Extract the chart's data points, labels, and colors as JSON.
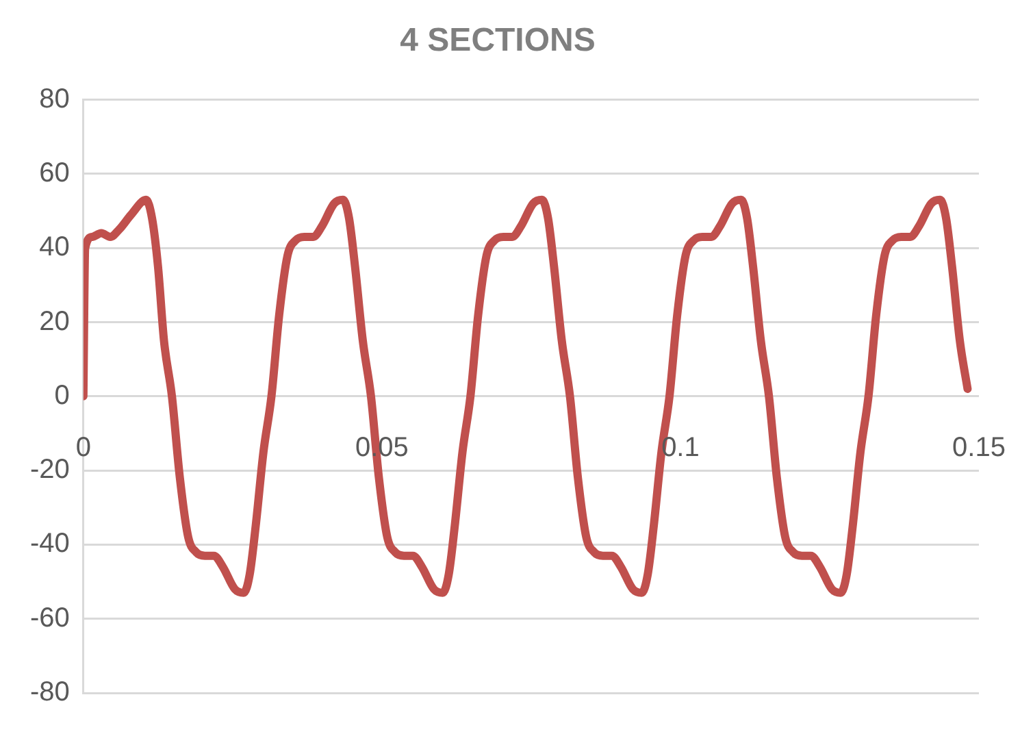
{
  "chart_data": {
    "type": "line",
    "title": "4 SECTIONS",
    "x": [
      0,
      0.0003,
      0.0015,
      0.003,
      0.0045,
      0.006,
      0.008,
      0.0105,
      0.0115,
      0.0125,
      0.0135,
      0.01483,
      0.01616,
      0.01756,
      0.01886,
      0.02036,
      0.02186,
      0.02336,
      0.02536,
      0.02686,
      0.02786,
      0.02886,
      0.03016,
      0.0315,
      0.0328,
      0.0342,
      0.0355,
      0.037,
      0.0385,
      0.04,
      0.042,
      0.0435,
      0.0445,
      0.0455,
      0.0468,
      0.04817,
      0.0495,
      0.0509,
      0.0522,
      0.0537,
      0.0552,
      0.0567,
      0.0587,
      0.0602,
      0.0612,
      0.0622,
      0.0635,
      0.06483,
      0.06613,
      0.06753,
      0.06883,
      0.07033,
      0.07183,
      0.07333,
      0.07533,
      0.07683,
      0.07783,
      0.07883,
      0.08013,
      0.0815,
      0.08283,
      0.08423,
      0.08553,
      0.08703,
      0.08853,
      0.09003,
      0.09203,
      0.09353,
      0.09453,
      0.09553,
      0.09683,
      0.09817,
      0.09947,
      0.10087,
      0.10217,
      0.10367,
      0.10517,
      0.10667,
      0.10867,
      0.11017,
      0.11117,
      0.11217,
      0.11347,
      0.11483,
      0.11616,
      0.11756,
      0.11886,
      0.12036,
      0.12186,
      0.12336,
      0.12536,
      0.12686,
      0.12786,
      0.12886,
      0.13016,
      0.1315,
      0.1328,
      0.1342,
      0.1355,
      0.137,
      0.1385,
      0.14,
      0.142,
      0.1435,
      0.1445,
      0.1455,
      0.1468,
      0.1481
    ],
    "series": [
      {
        "color": "#c0504d",
        "values": [
          0,
          40,
          43,
          44,
          43,
          45,
          49,
          53,
          48,
          35,
          15,
          0,
          -22,
          -38,
          -42,
          -43,
          -43,
          -46,
          -52,
          -53,
          -48,
          -35,
          -15,
          0,
          22,
          38,
          42,
          43,
          43,
          46,
          52,
          53,
          48,
          35,
          15,
          0,
          -22,
          -38,
          -42,
          -43,
          -43,
          -46,
          -52,
          -53,
          -48,
          -35,
          -15,
          0,
          22,
          38,
          42,
          43,
          43,
          46,
          52,
          53,
          48,
          35,
          15,
          0,
          -22,
          -38,
          -42,
          -43,
          -43,
          -46,
          -52,
          -53,
          -48,
          -35,
          -15,
          0,
          22,
          38,
          42,
          43,
          43,
          46,
          52,
          53,
          48,
          35,
          15,
          0,
          -22,
          -38,
          -42,
          -43,
          -43,
          -46,
          -52,
          -53,
          -48,
          -35,
          -15,
          0,
          22,
          38,
          42,
          43,
          43,
          46,
          52,
          53,
          48,
          35,
          15,
          2
        ]
      }
    ],
    "xlim": [
      0,
      0.15
    ],
    "xticks": [
      0,
      0.05,
      0.1,
      0.15
    ],
    "ylim": [
      -80,
      80
    ],
    "yticks": [
      -80,
      -60,
      -40,
      -20,
      0,
      20,
      40,
      60,
      80
    ],
    "grid": "y",
    "legend": false,
    "marker": "none",
    "line_style": "solid"
  }
}
